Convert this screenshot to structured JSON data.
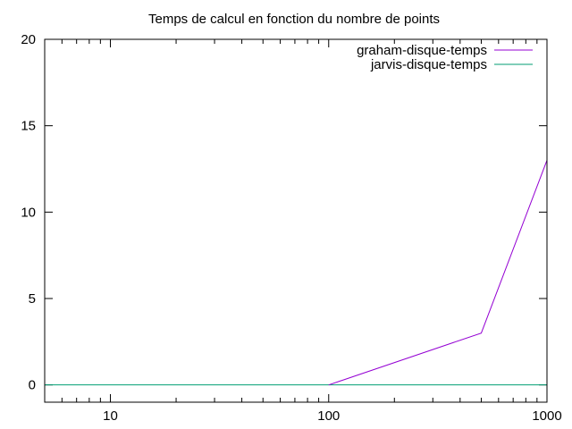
{
  "chart_data": {
    "type": "line",
    "title": "Temps de calcul en fonction du nombre de points",
    "xlabel": "",
    "ylabel": "",
    "xscale": "log",
    "xlim": [
      5,
      1000
    ],
    "ylim": [
      -1,
      20
    ],
    "x_ticks": [
      {
        "value": 10,
        "label": "10"
      },
      {
        "value": 100,
        "label": "100"
      },
      {
        "value": 1000,
        "label": "1000"
      }
    ],
    "y_ticks": [
      {
        "value": 0,
        "label": "0"
      },
      {
        "value": 5,
        "label": "5"
      },
      {
        "value": 10,
        "label": "10"
      },
      {
        "value": 15,
        "label": "15"
      },
      {
        "value": 20,
        "label": "20"
      }
    ],
    "grid": false,
    "legend_position": "top-right",
    "series": [
      {
        "name": "graham-disque-temps",
        "color": "#9400d3",
        "points": [
          {
            "x": 100,
            "y": 0
          },
          {
            "x": 500,
            "y": 3
          },
          {
            "x": 1000,
            "y": 13
          }
        ]
      },
      {
        "name": "jarvis-disque-temps",
        "color": "#009e73",
        "points": [
          {
            "x": 5,
            "y": 0
          },
          {
            "x": 10,
            "y": 0
          },
          {
            "x": 100,
            "y": 0
          },
          {
            "x": 1000,
            "y": 0
          }
        ]
      }
    ]
  }
}
